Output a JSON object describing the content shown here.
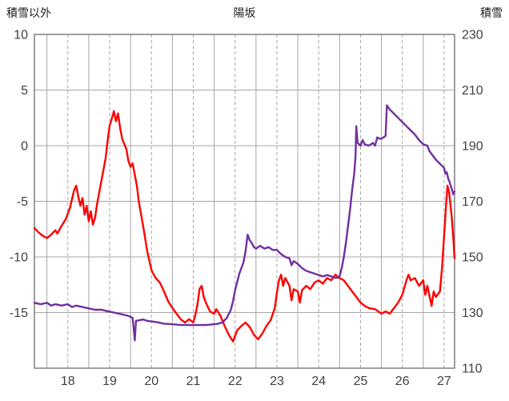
{
  "chart_data": {
    "type": "line",
    "title": "陽坂",
    "left_axis": {
      "label": "積雪以外",
      "min": -20,
      "max": 10,
      "ticks": [
        10,
        5,
        0,
        -5,
        -10,
        -15
      ]
    },
    "right_axis": {
      "label": "積雪",
      "min": 110,
      "max": 230,
      "ticks": [
        230,
        210,
        190,
        170,
        150,
        130,
        110
      ]
    },
    "x_axis": {
      "min": 17.2,
      "max": 27.25,
      "labels": [
        18,
        19,
        20,
        21,
        22,
        23,
        24,
        25,
        26,
        27
      ],
      "solid_gridlines": [
        17.5,
        18.5,
        19.5,
        20.5,
        21.5,
        22.5,
        23.5,
        24.5,
        25.5,
        26.5
      ]
    },
    "layout": {
      "grid": "on",
      "legend": "none",
      "grid_color": "#a6a6a6",
      "frame_color": "#7f7f7f",
      "tick_label_color": "#404040"
    },
    "series": [
      {
        "name": "積雪以外",
        "axis": "left",
        "color": "#ff0000",
        "points": [
          [
            17.2,
            -7.4
          ],
          [
            17.3,
            -7.8
          ],
          [
            17.4,
            -8.1
          ],
          [
            17.5,
            -8.3
          ],
          [
            17.6,
            -8.0
          ],
          [
            17.7,
            -7.6
          ],
          [
            17.75,
            -7.9
          ],
          [
            17.85,
            -7.2
          ],
          [
            17.95,
            -6.6
          ],
          [
            18.05,
            -5.6
          ],
          [
            18.1,
            -4.8
          ],
          [
            18.15,
            -4.0
          ],
          [
            18.2,
            -3.6
          ],
          [
            18.25,
            -4.6
          ],
          [
            18.3,
            -5.4
          ],
          [
            18.35,
            -4.7
          ],
          [
            18.4,
            -6.2
          ],
          [
            18.45,
            -5.4
          ],
          [
            18.5,
            -6.8
          ],
          [
            18.55,
            -5.9
          ],
          [
            18.6,
            -7.1
          ],
          [
            18.65,
            -6.5
          ],
          [
            18.7,
            -5.2
          ],
          [
            18.8,
            -3.2
          ],
          [
            18.9,
            -1.2
          ],
          [
            18.95,
            0.4
          ],
          [
            19.0,
            1.8
          ],
          [
            19.05,
            2.4
          ],
          [
            19.1,
            3.1
          ],
          [
            19.15,
            2.2
          ],
          [
            19.2,
            2.9
          ],
          [
            19.25,
            1.6
          ],
          [
            19.3,
            0.6
          ],
          [
            19.4,
            -0.3
          ],
          [
            19.45,
            -1.4
          ],
          [
            19.5,
            -1.9
          ],
          [
            19.55,
            -1.6
          ],
          [
            19.6,
            -2.6
          ],
          [
            19.65,
            -3.6
          ],
          [
            19.7,
            -5.1
          ],
          [
            19.8,
            -7.2
          ],
          [
            19.9,
            -9.5
          ],
          [
            20.0,
            -11.2
          ],
          [
            20.1,
            -11.9
          ],
          [
            20.2,
            -12.3
          ],
          [
            20.3,
            -13.1
          ],
          [
            20.4,
            -14.0
          ],
          [
            20.5,
            -14.6
          ],
          [
            20.6,
            -15.1
          ],
          [
            20.7,
            -15.6
          ],
          [
            20.8,
            -15.9
          ],
          [
            20.9,
            -15.6
          ],
          [
            21.0,
            -15.9
          ],
          [
            21.05,
            -15.2
          ],
          [
            21.1,
            -14.3
          ],
          [
            21.15,
            -12.9
          ],
          [
            21.2,
            -12.6
          ],
          [
            21.25,
            -13.6
          ],
          [
            21.3,
            -14.1
          ],
          [
            21.4,
            -14.9
          ],
          [
            21.5,
            -15.1
          ],
          [
            21.55,
            -14.7
          ],
          [
            21.65,
            -15.3
          ],
          [
            21.75,
            -16.2
          ],
          [
            21.85,
            -17.0
          ],
          [
            21.95,
            -17.6
          ],
          [
            22.0,
            -17.1
          ],
          [
            22.05,
            -16.6
          ],
          [
            22.15,
            -16.2
          ],
          [
            22.25,
            -15.9
          ],
          [
            22.35,
            -16.3
          ],
          [
            22.45,
            -17.0
          ],
          [
            22.55,
            -17.4
          ],
          [
            22.65,
            -16.9
          ],
          [
            22.75,
            -16.2
          ],
          [
            22.85,
            -15.7
          ],
          [
            22.95,
            -14.6
          ],
          [
            23.0,
            -13.2
          ],
          [
            23.05,
            -12.1
          ],
          [
            23.1,
            -11.6
          ],
          [
            23.15,
            -12.6
          ],
          [
            23.2,
            -11.9
          ],
          [
            23.3,
            -12.6
          ],
          [
            23.35,
            -13.9
          ],
          [
            23.4,
            -12.9
          ],
          [
            23.5,
            -13.1
          ],
          [
            23.55,
            -14.1
          ],
          [
            23.6,
            -13.0
          ],
          [
            23.7,
            -12.6
          ],
          [
            23.8,
            -12.9
          ],
          [
            23.9,
            -12.3
          ],
          [
            24.0,
            -12.1
          ],
          [
            24.1,
            -12.4
          ],
          [
            24.2,
            -11.9
          ],
          [
            24.3,
            -12.1
          ],
          [
            24.4,
            -11.6
          ],
          [
            24.5,
            -11.9
          ],
          [
            24.6,
            -12.1
          ],
          [
            24.7,
            -12.6
          ],
          [
            24.8,
            -13.1
          ],
          [
            24.9,
            -13.6
          ],
          [
            25.0,
            -14.1
          ],
          [
            25.1,
            -14.4
          ],
          [
            25.2,
            -14.6
          ],
          [
            25.35,
            -14.7
          ],
          [
            25.5,
            -15.1
          ],
          [
            25.6,
            -14.9
          ],
          [
            25.7,
            -15.1
          ],
          [
            25.8,
            -14.6
          ],
          [
            25.9,
            -14.1
          ],
          [
            26.0,
            -13.4
          ],
          [
            26.1,
            -12.1
          ],
          [
            26.15,
            -11.6
          ],
          [
            26.2,
            -12.1
          ],
          [
            26.3,
            -11.9
          ],
          [
            26.4,
            -12.6
          ],
          [
            26.5,
            -12.1
          ],
          [
            26.55,
            -13.4
          ],
          [
            26.6,
            -12.6
          ],
          [
            26.7,
            -14.4
          ],
          [
            26.75,
            -13.1
          ],
          [
            26.8,
            -13.6
          ],
          [
            26.9,
            -13.1
          ],
          [
            26.95,
            -11.0
          ],
          [
            27.0,
            -8.1
          ],
          [
            27.05,
            -5.1
          ],
          [
            27.08,
            -3.6
          ],
          [
            27.12,
            -4.2
          ],
          [
            27.18,
            -6.3
          ],
          [
            27.22,
            -8.3
          ],
          [
            27.25,
            -10.1
          ]
        ]
      },
      {
        "name": "積雪",
        "axis": "right",
        "color": "#7030a0",
        "points": [
          [
            17.2,
            133.5
          ],
          [
            17.35,
            133.0
          ],
          [
            17.5,
            133.5
          ],
          [
            17.6,
            132.5
          ],
          [
            17.7,
            133.0
          ],
          [
            17.85,
            132.5
          ],
          [
            18.0,
            133.0
          ],
          [
            18.1,
            132.0
          ],
          [
            18.2,
            132.5
          ],
          [
            18.35,
            132.0
          ],
          [
            18.5,
            131.5
          ],
          [
            18.65,
            131.0
          ],
          [
            18.8,
            131.0
          ],
          [
            18.95,
            130.5
          ],
          [
            19.1,
            130.0
          ],
          [
            19.25,
            129.5
          ],
          [
            19.4,
            129.0
          ],
          [
            19.5,
            128.5
          ],
          [
            19.55,
            128.0
          ],
          [
            19.6,
            120.0
          ],
          [
            19.63,
            127.0
          ],
          [
            19.7,
            127.2
          ],
          [
            19.8,
            127.5
          ],
          [
            19.9,
            127.0
          ],
          [
            20.0,
            126.8
          ],
          [
            20.15,
            126.5
          ],
          [
            20.3,
            126.0
          ],
          [
            20.5,
            125.8
          ],
          [
            20.7,
            125.5
          ],
          [
            20.9,
            125.5
          ],
          [
            21.1,
            125.5
          ],
          [
            21.3,
            125.5
          ],
          [
            21.5,
            125.8
          ],
          [
            21.6,
            126.0
          ],
          [
            21.7,
            126.5
          ],
          [
            21.8,
            128.0
          ],
          [
            21.9,
            131.0
          ],
          [
            21.95,
            134.0
          ],
          [
            22.0,
            138.0
          ],
          [
            22.05,
            141.0
          ],
          [
            22.1,
            144.0
          ],
          [
            22.15,
            146.0
          ],
          [
            22.2,
            148.0
          ],
          [
            22.25,
            152.0
          ],
          [
            22.3,
            158.0
          ],
          [
            22.35,
            156.0
          ],
          [
            22.4,
            155.0
          ],
          [
            22.45,
            153.5
          ],
          [
            22.5,
            153.0
          ],
          [
            22.6,
            154.0
          ],
          [
            22.7,
            153.0
          ],
          [
            22.8,
            153.5
          ],
          [
            22.9,
            152.5
          ],
          [
            23.0,
            152.5
          ],
          [
            23.1,
            151.0
          ],
          [
            23.2,
            150.0
          ],
          [
            23.3,
            149.5
          ],
          [
            23.35,
            147.0
          ],
          [
            23.4,
            148.5
          ],
          [
            23.5,
            147.5
          ],
          [
            23.6,
            146.0
          ],
          [
            23.7,
            145.0
          ],
          [
            23.8,
            144.5
          ],
          [
            23.9,
            144.0
          ],
          [
            24.0,
            143.5
          ],
          [
            24.1,
            143.0
          ],
          [
            24.2,
            143.5
          ],
          [
            24.3,
            143.0
          ],
          [
            24.4,
            142.5
          ],
          [
            24.45,
            142.5
          ],
          [
            24.5,
            143.0
          ],
          [
            24.55,
            146.0
          ],
          [
            24.6,
            150.0
          ],
          [
            24.65,
            155.0
          ],
          [
            24.7,
            161.0
          ],
          [
            24.75,
            167.0
          ],
          [
            24.8,
            174.0
          ],
          [
            24.85,
            180.0
          ],
          [
            24.88,
            186.0
          ],
          [
            24.9,
            197.0
          ],
          [
            24.93,
            191.0
          ],
          [
            25.0,
            190.0
          ],
          [
            25.05,
            192.0
          ],
          [
            25.1,
            190.5
          ],
          [
            25.2,
            190.0
          ],
          [
            25.3,
            191.0
          ],
          [
            25.35,
            190.0
          ],
          [
            25.4,
            193.0
          ],
          [
            25.45,
            192.5
          ],
          [
            25.5,
            192.5
          ],
          [
            25.55,
            193.0
          ],
          [
            25.6,
            193.5
          ],
          [
            25.63,
            204.5
          ],
          [
            25.7,
            203.0
          ],
          [
            25.8,
            201.5
          ],
          [
            25.9,
            200.0
          ],
          [
            26.0,
            198.5
          ],
          [
            26.1,
            197.0
          ],
          [
            26.2,
            195.5
          ],
          [
            26.3,
            194.0
          ],
          [
            26.4,
            192.0
          ],
          [
            26.5,
            190.5
          ],
          [
            26.6,
            190.0
          ],
          [
            26.65,
            188.0
          ],
          [
            26.7,
            187.0
          ],
          [
            26.8,
            185.0
          ],
          [
            26.9,
            183.5
          ],
          [
            27.0,
            182.0
          ],
          [
            27.03,
            180.0
          ],
          [
            27.06,
            180.5
          ],
          [
            27.1,
            178.0
          ],
          [
            27.13,
            177.0
          ],
          [
            27.16,
            175.5
          ],
          [
            27.19,
            174.0
          ],
          [
            27.22,
            172.5
          ],
          [
            27.25,
            173.5
          ]
        ]
      }
    ]
  }
}
